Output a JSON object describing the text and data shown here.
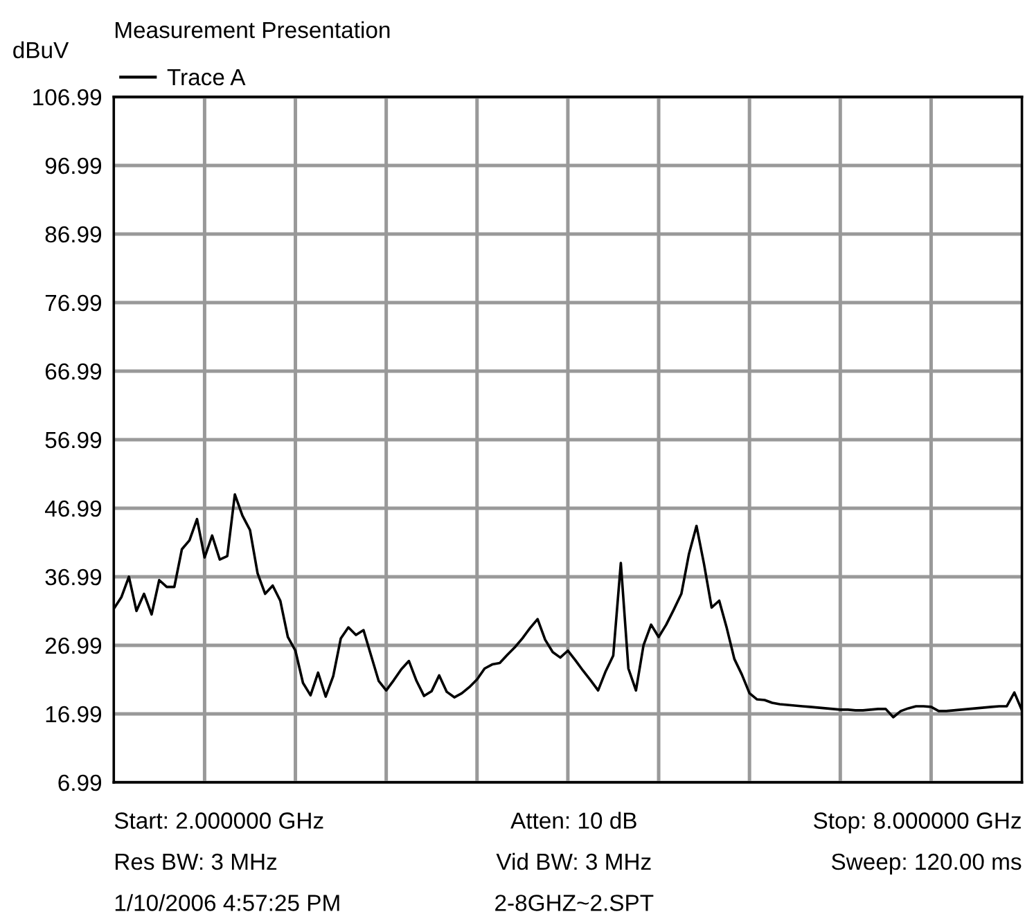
{
  "chart_data": {
    "type": "line",
    "title": "Measurement Presentation",
    "ylabel": "dBuV",
    "categories": [
      null,
      null,
      null,
      null,
      null,
      null,
      null,
      null,
      null,
      null,
      null,
      null,
      null,
      null,
      null,
      null,
      null,
      null,
      null,
      null,
      null,
      null,
      null,
      null,
      null,
      null,
      null,
      null,
      null,
      null,
      null,
      null,
      null,
      null,
      null,
      null,
      null,
      null,
      null,
      null,
      null,
      null,
      null,
      null,
      null,
      null,
      null,
      null,
      null,
      null,
      null,
      null,
      null,
      null,
      null,
      null,
      null,
      null,
      null,
      null,
      null,
      null,
      null,
      null,
      null,
      null,
      null,
      null,
      null,
      null,
      null,
      null,
      null,
      null,
      null,
      null,
      null,
      null,
      null,
      null,
      null,
      null,
      null,
      null,
      null,
      null,
      null,
      null,
      null,
      null,
      null,
      null,
      null,
      null,
      null,
      null,
      null,
      null,
      null,
      null,
      null,
      null,
      null,
      null,
      null,
      null,
      null,
      null,
      null,
      null,
      null,
      null,
      null,
      null,
      null,
      null,
      null,
      null,
      null,
      null,
      null
    ],
    "ylim": [
      6.99,
      106.99
    ],
    "yticks": [
      6.99,
      16.99,
      26.99,
      36.99,
      46.99,
      56.99,
      66.99,
      76.99,
      86.99,
      96.99,
      106.99
    ],
    "tick_labels": "y",
    "grid": true,
    "legend": "top left",
    "marker": "none",
    "line_style": "solid",
    "series": [
      {
        "name": "Trace A",
        "color": "#000000",
        "values": [
          32.3,
          34,
          37,
          32,
          34.5,
          31.5,
          36.5,
          35.5,
          35.5,
          41,
          42.3,
          45.4,
          39.8,
          43,
          39.5,
          40,
          49,
          45.9,
          43.8,
          37.5,
          34.5,
          35.7,
          33.5,
          28.2,
          26.2,
          21.5,
          19.7,
          23,
          19.5,
          22.5,
          28,
          29.6,
          28.5,
          29.2,
          25.5,
          21.8,
          20.4,
          21.9,
          23.5,
          24.7,
          21.8,
          19.6,
          20.3,
          22.6,
          20.2,
          19.4,
          20,
          20.9,
          22,
          23.6,
          24.2,
          24.4,
          25.6,
          26.7,
          28,
          29.5,
          30.8,
          27.8,
          26,
          25.2,
          26.2,
          24.8,
          23.3,
          21.9,
          20.4,
          23.2,
          25.5,
          39,
          23.6,
          20.4,
          27,
          30,
          28.2,
          30,
          32.2,
          34.5,
          40.3,
          44.4,
          38.8,
          32.5,
          33.5,
          29.5,
          25,
          22.7,
          20,
          19.1,
          19,
          18.6,
          18.4,
          18.3,
          18.2,
          18.1,
          18,
          17.9,
          17.8,
          17.7,
          17.6,
          17.6,
          17.5,
          17.5,
          17.6,
          17.7,
          17.7,
          16.5,
          17.4,
          17.8,
          18.1,
          18.1,
          18,
          17.4,
          17.4,
          17.5,
          17.6,
          17.7,
          17.8,
          17.9,
          18,
          18.1,
          18.1,
          20.1,
          17.5
        ]
      }
    ],
    "annotations": [
      "Start: 2.000000 GHz",
      "Atten: 10 dB",
      "Stop: 8.000000 GHz",
      "Res BW: 3 MHz",
      "Vid BW: 3 MHz",
      "Sweep: 120.00 ms",
      "1/10/2006 4:57:25 PM",
      "2-8GHZ~2.SPT"
    ]
  }
}
